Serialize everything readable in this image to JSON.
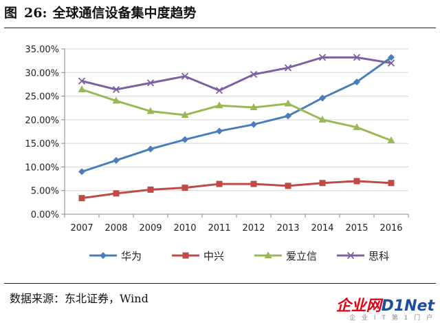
{
  "header": {
    "figure_label": "图",
    "figure_number": "26:",
    "title": "全球通信设备集中度趋势"
  },
  "footer": {
    "source": "数据来源：东北证券，Wind"
  },
  "watermark": {
    "main_a": "企业网",
    "main_b": "D1Net",
    "sub": "企 业 I T 第 1 门 户"
  },
  "chart_data": {
    "type": "line",
    "categories": [
      "2007",
      "2008",
      "2009",
      "2010",
      "2011",
      "2012",
      "2013",
      "2014",
      "2015",
      "2016"
    ],
    "y_ticks": [
      "0.00%",
      "5.00%",
      "10.00%",
      "15.00%",
      "20.00%",
      "25.00%",
      "30.00%",
      "35.00%"
    ],
    "ylim": [
      0,
      35
    ],
    "y_unit": "percent",
    "legend_position": "bottom",
    "grid": "horizontal",
    "series": [
      {
        "name": "华为",
        "color": "#4a7ebb",
        "marker": "diamond",
        "values": [
          9.0,
          11.4,
          13.8,
          15.8,
          17.6,
          19.0,
          20.8,
          24.6,
          28.0,
          33.2
        ]
      },
      {
        "name": "中兴",
        "color": "#be4b48",
        "marker": "square",
        "values": [
          3.4,
          4.4,
          5.2,
          5.6,
          6.4,
          6.4,
          6.0,
          6.6,
          7.0,
          6.6
        ]
      },
      {
        "name": "爱立信",
        "color": "#98b954",
        "marker": "triangle",
        "values": [
          26.4,
          24.0,
          21.8,
          21.0,
          23.0,
          22.6,
          23.4,
          20.0,
          18.4,
          15.6
        ]
      },
      {
        "name": "思科",
        "color": "#7d60a0",
        "marker": "x",
        "values": [
          28.2,
          26.4,
          27.8,
          29.2,
          26.2,
          29.6,
          31.0,
          33.2,
          33.2,
          32.0
        ]
      }
    ]
  }
}
